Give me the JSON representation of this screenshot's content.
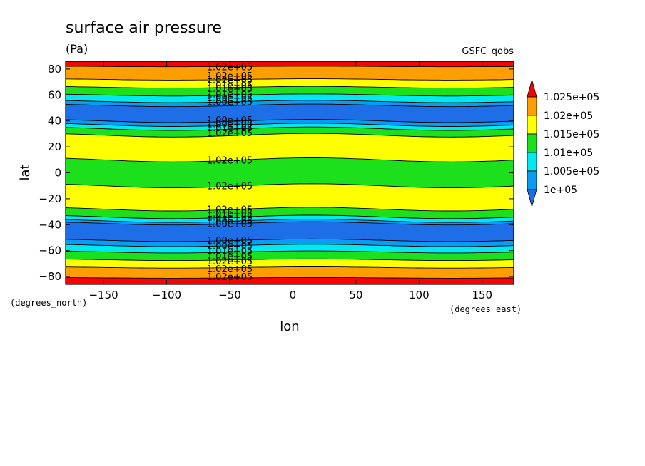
{
  "chart_data": {
    "type": "heatmap",
    "title": "surface air pressure",
    "units": "(Pa)",
    "source_label": "GSFC_qobs",
    "xlabel": "lon",
    "ylabel": "lat",
    "x_unit": "(degrees_east)",
    "y_unit": "(degrees_north)",
    "xlim": [
      -180,
      175
    ],
    "ylim": [
      -86,
      86
    ],
    "x_ticks": [
      -150,
      -100,
      -50,
      0,
      50,
      100,
      150
    ],
    "x_tick_labels": [
      "−150",
      "−100",
      "−50",
      "0",
      "50",
      "100",
      "150"
    ],
    "y_ticks": [
      -80,
      -60,
      -40,
      -20,
      0,
      20,
      40,
      60,
      80
    ],
    "y_tick_labels": [
      "−80",
      "−60",
      "−40",
      "−20",
      "0",
      "20",
      "40",
      "60",
      "80"
    ],
    "colorbar": {
      "levels": [
        100000,
        100500,
        101000,
        101500,
        102000,
        102500
      ],
      "labels": [
        "1e+05",
        "1.005e+05",
        "1.01e+05",
        "1.015e+05",
        "1.02e+05",
        "1.025e+05"
      ],
      "colors": [
        "#1e6ee8",
        "#0a9cf0",
        "#00e8f0",
        "#1ce01c",
        "#ffff00",
        "#ff9e00",
        "#ff0000"
      ]
    },
    "zonal_bands": [
      {
        "lat_range": [
          82,
          86
        ],
        "level": "> 1.025e+05",
        "color": "#ff0000"
      },
      {
        "lat_range": [
          72,
          82
        ],
        "level": "1.02e+05 to 1.025e+05",
        "color": "#ff9e00"
      },
      {
        "lat_range": [
          66,
          72
        ],
        "level": "1.015e+05 to 1.02e+05",
        "color": "#ffff00"
      },
      {
        "lat_range": [
          60,
          66
        ],
        "level": "1.01e+05 to 1.015e+05",
        "color": "#1ce01c"
      },
      {
        "lat_range": [
          55,
          60
        ],
        "level": "1.005e+05 to 1.01e+05",
        "color": "#00e8f0"
      },
      {
        "lat_range": [
          52,
          55
        ],
        "level": "1e+05 to 1.005e+05",
        "color": "#0a9cf0"
      },
      {
        "lat_range": [
          40,
          52
        ],
        "level": "< 1e+05",
        "color": "#1e6ee8"
      },
      {
        "lat_range": [
          37,
          40
        ],
        "level": "1e+05 to 1.005e+05",
        "color": "#0a9cf0"
      },
      {
        "lat_range": [
          34,
          37
        ],
        "level": "1.005e+05 to 1.01e+05",
        "color": "#00e8f0"
      },
      {
        "lat_range": [
          29,
          34
        ],
        "level": "1.01e+05 to 1.015e+05",
        "color": "#1ce01c"
      },
      {
        "lat_range": [
          10,
          29
        ],
        "level": "1.015e+05 to 1.02e+05",
        "color": "#ffff00"
      },
      {
        "lat_range": [
          -10,
          10
        ],
        "level": "1.01e+05 to 1.015e+05",
        "color": "#1ce01c"
      },
      {
        "lat_range": [
          -28,
          -10
        ],
        "level": "1.015e+05 to 1.02e+05",
        "color": "#ffff00"
      },
      {
        "lat_range": [
          -34,
          -28
        ],
        "level": "1.01e+05 to 1.015e+05",
        "color": "#1ce01c"
      },
      {
        "lat_range": [
          -37,
          -34
        ],
        "level": "1.005e+05 to 1.01e+05",
        "color": "#00e8f0"
      },
      {
        "lat_range": [
          -39,
          -37
        ],
        "level": "1e+05 to 1.005e+05",
        "color": "#0a9cf0"
      },
      {
        "lat_range": [
          -52,
          -39
        ],
        "level": "< 1e+05",
        "color": "#1e6ee8"
      },
      {
        "lat_range": [
          -56,
          -52
        ],
        "level": "1e+05 to 1.005e+05",
        "color": "#0a9cf0"
      },
      {
        "lat_range": [
          -61,
          -56
        ],
        "level": "1.005e+05 to 1.01e+05",
        "color": "#00e8f0"
      },
      {
        "lat_range": [
          -67,
          -61
        ],
        "level": "1.01e+05 to 1.015e+05",
        "color": "#1ce01c"
      },
      {
        "lat_range": [
          -73,
          -67
        ],
        "level": "1.015e+05 to 1.02e+05",
        "color": "#ffff00"
      },
      {
        "lat_range": [
          -81,
          -73
        ],
        "level": "1.02e+05 to 1.025e+05",
        "color": "#ff9e00"
      },
      {
        "lat_range": [
          -86,
          -81
        ],
        "level": "> 1.025e+05",
        "color": "#ff0000"
      }
    ],
    "contour_labels": [
      {
        "text": "1.02e+05",
        "lon": -50,
        "lat": 82
      },
      {
        "text": "1.02e+05",
        "lon": -50,
        "lat": 75
      },
      {
        "text": "1.02e+05",
        "lon": -50,
        "lat": 72
      },
      {
        "text": "1.01e+05",
        "lon": -50,
        "lat": 68
      },
      {
        "text": "1.01e+05",
        "lon": -50,
        "lat": 65
      },
      {
        "text": "1.01e+05",
        "lon": -50,
        "lat": 61
      },
      {
        "text": "1.00e+05",
        "lon": -50,
        "lat": 58
      },
      {
        "text": "1.00e+05",
        "lon": -50,
        "lat": 55
      },
      {
        "text": "1.00e+05",
        "lon": -50,
        "lat": 41
      },
      {
        "text": "1.00e+05",
        "lon": -50,
        "lat": 38
      },
      {
        "text": "1.01e+05",
        "lon": -50,
        "lat": 35
      },
      {
        "text": "1.02e+05",
        "lon": -50,
        "lat": 31
      },
      {
        "text": "1.02e+05",
        "lon": -50,
        "lat": 10
      },
      {
        "text": "1.02e+05",
        "lon": -50,
        "lat": -10
      },
      {
        "text": "1.02e+05",
        "lon": -50,
        "lat": -28
      },
      {
        "text": "1.01e+05",
        "lon": -50,
        "lat": -31
      },
      {
        "text": "1.01e+05",
        "lon": -50,
        "lat": -34
      },
      {
        "text": "1.00e+05",
        "lon": -50,
        "lat": -37
      },
      {
        "text": "1.00e+05",
        "lon": -50,
        "lat": -39
      },
      {
        "text": "1.00e+05",
        "lon": -50,
        "lat": -52
      },
      {
        "text": "1.00e+05",
        "lon": -50,
        "lat": -56
      },
      {
        "text": "1.01e+05",
        "lon": -50,
        "lat": -60
      },
      {
        "text": "1.01e+05",
        "lon": -50,
        "lat": -64
      },
      {
        "text": "1.02e+05",
        "lon": -50,
        "lat": -68
      },
      {
        "text": "1.02e+05",
        "lon": -50,
        "lat": -74
      },
      {
        "text": "1.02e+05",
        "lon": -50,
        "lat": -80
      }
    ]
  }
}
